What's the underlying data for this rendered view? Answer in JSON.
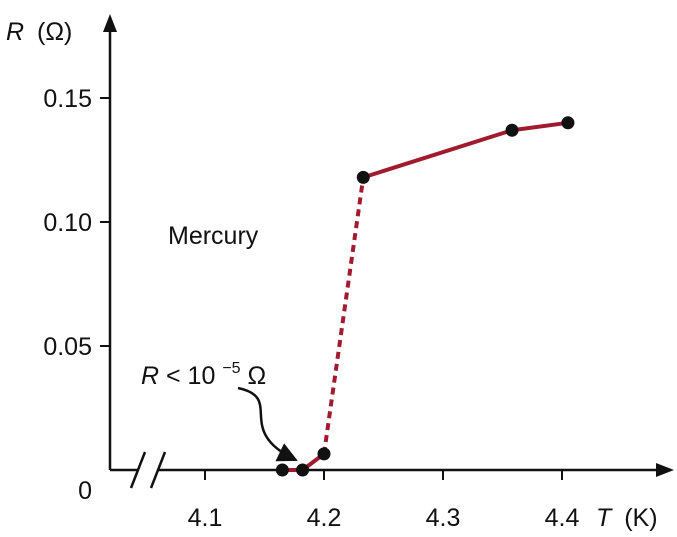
{
  "chart_data": {
    "type": "line",
    "title": "",
    "xlabel": {
      "symbol": "T",
      "unit": "(K)"
    },
    "ylabel": {
      "symbol": "R",
      "unit": "(Ω)"
    },
    "xlim": [
      4.03,
      4.48
    ],
    "ylim": [
      0,
      0.15
    ],
    "x_axis_break": true,
    "x_ticks": [
      4.1,
      4.2,
      4.3,
      4.4
    ],
    "x_tick_labels": [
      "4.1",
      "4.2",
      "4.3",
      "4.4"
    ],
    "y_ticks": [
      0.05,
      0.1,
      0.15
    ],
    "y_tick_labels": [
      "0.05",
      "0.10",
      "0.15"
    ],
    "y_zero_label": "0",
    "series": [
      {
        "points": [
          {
            "x": 4.165,
            "y": 0.0
          },
          {
            "x": 4.182,
            "y": 0.0
          },
          {
            "x": 4.2,
            "y": 0.0065
          },
          {
            "x": 4.233,
            "y": 0.118
          },
          {
            "x": 4.358,
            "y": 0.137
          },
          {
            "x": 4.405,
            "y": 0.14
          }
        ],
        "segment_styles": [
          "solid",
          "solid",
          "dashed",
          "solid",
          "solid"
        ],
        "color": "#a01b2e"
      }
    ],
    "annotations": [
      {
        "text": "Mercury",
        "x": 4.07,
        "y": 0.095
      },
      {
        "text_prefix": "R",
        "text_middle": " < 10",
        "text_exp": "−5",
        "text_suffix": " Ω",
        "x": 4.06,
        "y": 0.035,
        "arrow_to": {
          "x": 4.182,
          "y": 0.0
        }
      }
    ],
    "grid": false,
    "legend": "none"
  },
  "colors": {
    "line": "#a01b2e",
    "marker": "#111111",
    "axis": "#111111"
  }
}
